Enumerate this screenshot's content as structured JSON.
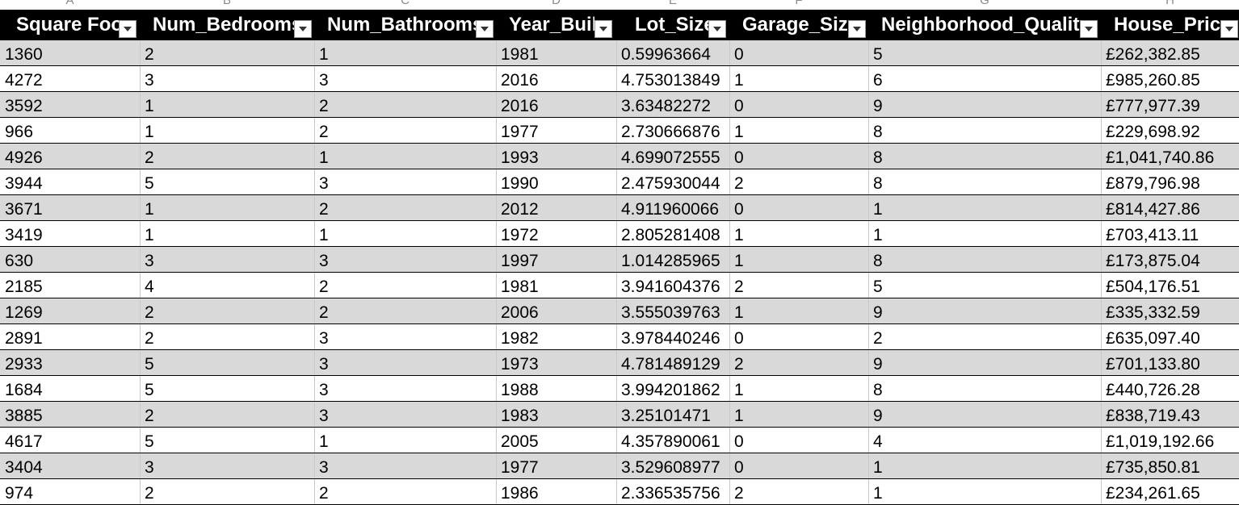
{
  "column_letters": [
    "A",
    "B",
    "C",
    "D",
    "E",
    "F",
    "G",
    "H"
  ],
  "headers": [
    "Square Footage",
    "Num_Bedrooms",
    "Num_Bathrooms",
    "Year_Built",
    "Lot_Size",
    "Garage_Size",
    "Neighborhood_Quality",
    "House_Price"
  ],
  "header_display": [
    "Square Foot",
    "Num_Bedrooms",
    "Num_Bathrooms",
    "Year_Built",
    "Lot_Size",
    "Garage_Size",
    "Neighborhood_Quality",
    "House_Price"
  ],
  "filter_icon": "dropdown-arrow-icon",
  "header_background": "#000000",
  "band_color": "#d9d9d9",
  "rows": [
    [
      "1360",
      "2",
      "1",
      "1981",
      "0.59963664",
      "0",
      "5",
      "£262,382.85"
    ],
    [
      "4272",
      "3",
      "3",
      "2016",
      "4.753013849",
      "1",
      "6",
      "£985,260.85"
    ],
    [
      "3592",
      "1",
      "2",
      "2016",
      "3.63482272",
      "0",
      "9",
      "£777,977.39"
    ],
    [
      "966",
      "1",
      "2",
      "1977",
      "2.730666876",
      "1",
      "8",
      "£229,698.92"
    ],
    [
      "4926",
      "2",
      "1",
      "1993",
      "4.699072555",
      "0",
      "8",
      "£1,041,740.86"
    ],
    [
      "3944",
      "5",
      "3",
      "1990",
      "2.475930044",
      "2",
      "8",
      "£879,796.98"
    ],
    [
      "3671",
      "1",
      "2",
      "2012",
      "4.911960066",
      "0",
      "1",
      "£814,427.86"
    ],
    [
      "3419",
      "1",
      "1",
      "1972",
      "2.805281408",
      "1",
      "1",
      "£703,413.11"
    ],
    [
      "630",
      "3",
      "3",
      "1997",
      "1.014285965",
      "1",
      "8",
      "£173,875.04"
    ],
    [
      "2185",
      "4",
      "2",
      "1981",
      "3.941604376",
      "2",
      "5",
      "£504,176.51"
    ],
    [
      "1269",
      "2",
      "2",
      "2006",
      "3.555039763",
      "1",
      "9",
      "£335,332.59"
    ],
    [
      "2891",
      "2",
      "3",
      "1982",
      "3.978440246",
      "0",
      "2",
      "£635,097.40"
    ],
    [
      "2933",
      "5",
      "3",
      "1973",
      "4.781489129",
      "2",
      "9",
      "£701,133.80"
    ],
    [
      "1684",
      "5",
      "3",
      "1988",
      "3.994201862",
      "1",
      "8",
      "£440,726.28"
    ],
    [
      "3885",
      "2",
      "3",
      "1983",
      "3.25101471",
      "1",
      "9",
      "£838,719.43"
    ],
    [
      "4617",
      "5",
      "1",
      "2005",
      "4.357890061",
      "0",
      "4",
      "£1,019,192.66"
    ],
    [
      "3404",
      "3",
      "3",
      "1977",
      "3.529608977",
      "0",
      "1",
      "£735,850.81"
    ],
    [
      "974",
      "2",
      "2",
      "1986",
      "2.336535756",
      "2",
      "1",
      "£234,261.65"
    ]
  ]
}
